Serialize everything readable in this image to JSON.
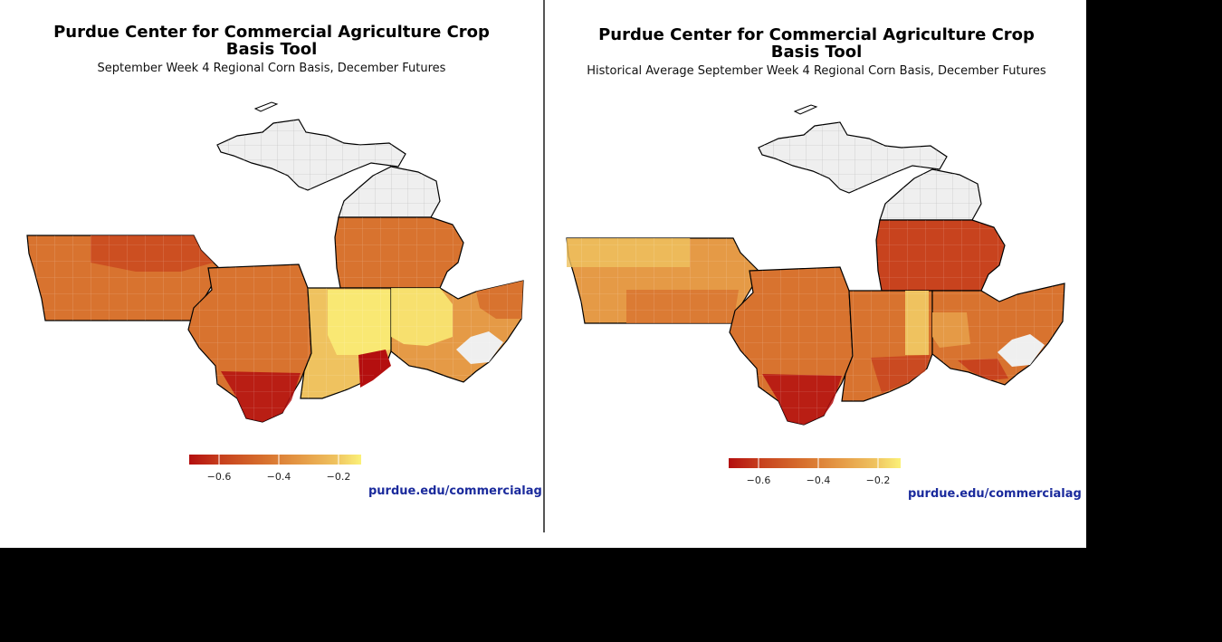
{
  "colors": {
    "scale": [
      "#b40f0f",
      "#c8431e",
      "#d8732f",
      "#e59a46",
      "#efc25f",
      "#fbf178"
    ],
    "no_data": "#efefef",
    "credit": "#1a2a9c"
  },
  "panels": [
    {
      "id": "current",
      "title": "Purdue Center for Commercial Agriculture Crop Basis Tool",
      "subtitle": "September Week 4 Regional Corn Basis, December Futures",
      "legend": {
        "ticks": [
          "−0.6",
          "−0.4",
          "−0.2"
        ]
      },
      "credit": "purdue.edu/commercialag",
      "region_basis": {
        "michigan_upper": "no data",
        "michigan_north_lower": "no data",
        "michigan_south_lower": -0.45,
        "iowa": -0.45,
        "illinois": -0.42,
        "illinois_south_tip": -0.6,
        "indiana": -0.25,
        "indiana_northeast": -0.18,
        "indiana_southeast_pocket": -0.62,
        "ohio_west": -0.3,
        "ohio_east": -0.4,
        "ohio_southeast": "no data",
        "kentucky_strip": -0.42
      }
    },
    {
      "id": "historical",
      "title": "Purdue Center for Commercial Agriculture Crop Basis Tool",
      "subtitle": "Historical Average September Week 4 Regional Corn Basis, December Futures",
      "legend": {
        "ticks": [
          "−0.6",
          "−0.4",
          "−0.2"
        ]
      },
      "credit": "purdue.edu/commercialag",
      "region_basis": {
        "michigan_upper": "no data",
        "michigan_north_lower": "no data",
        "michigan_south_lower": -0.55,
        "iowa": -0.3,
        "illinois": -0.42,
        "illinois_south_tip": -0.6,
        "indiana": -0.45,
        "indiana_central_strip": -0.25,
        "ohio_west": -0.38,
        "ohio_east": -0.42,
        "ohio_southeast": "no data",
        "kentucky_strip": -0.52
      }
    }
  ]
}
